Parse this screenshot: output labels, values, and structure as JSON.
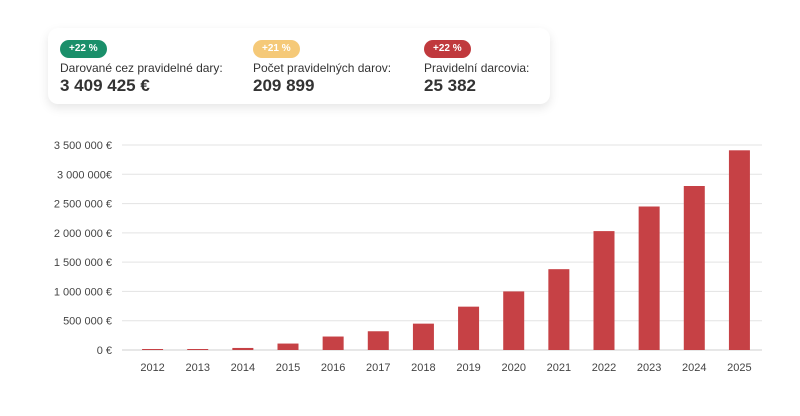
{
  "stats": [
    {
      "badge": "+22 %",
      "badge_color": "#1a8f6a",
      "label": "Darované cez pravidelné dary:",
      "value": "3 409 425 €"
    },
    {
      "badge": "+21 %",
      "badge_color": "#f5c978",
      "label": "Počet pravidelných darov:",
      "value": "209 899"
    },
    {
      "badge": "+22 %",
      "badge_color": "#c0393d",
      "label": "Pravidelní darcovia:",
      "value": "25 382"
    }
  ],
  "chart_data": {
    "type": "bar",
    "categories": [
      "2012",
      "2013",
      "2014",
      "2015",
      "2016",
      "2017",
      "2018",
      "2019",
      "2020",
      "2021",
      "2022",
      "2023",
      "2024",
      "2025"
    ],
    "values": [
      3000,
      12000,
      35000,
      110000,
      230000,
      320000,
      450000,
      740000,
      1000000,
      1380000,
      2030000,
      2450000,
      2800000,
      3409425
    ],
    "ylim": [
      0,
      3500000
    ],
    "y_ticks": [
      {
        "value": 0,
        "label": "0 €"
      },
      {
        "value": 500000,
        "label": "500 000 €"
      },
      {
        "value": 1000000,
        "label": "1 000 000 €"
      },
      {
        "value": 1500000,
        "label": "1 500 000 €"
      },
      {
        "value": 2000000,
        "label": "2 000 000 €"
      },
      {
        "value": 2500000,
        "label": "2 500 000 €"
      },
      {
        "value": 3000000,
        "label": "3 000 000€"
      },
      {
        "value": 3500000,
        "label": "3 500 000 €"
      }
    ],
    "bar_color": "#c64145",
    "grid": true,
    "xlabel": "",
    "ylabel": "",
    "title": ""
  }
}
